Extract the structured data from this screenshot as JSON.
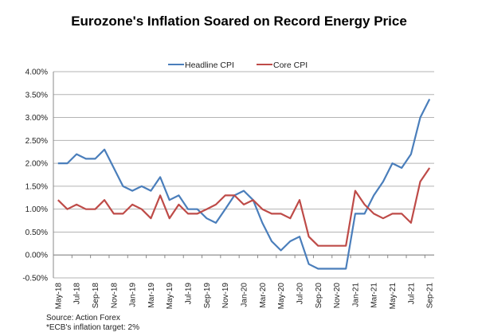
{
  "chart_data": {
    "type": "line",
    "title": "Eurozone's Inflation Soared on Record Energy Price",
    "xlabel": "",
    "ylabel": "",
    "ylim": [
      -0.5,
      4.0
    ],
    "ytick_step": 0.5,
    "ytick_labels": [
      "-0.50%",
      "0.00%",
      "0.50%",
      "1.00%",
      "1.50%",
      "2.00%",
      "2.50%",
      "3.00%",
      "3.50%",
      "4.00%"
    ],
    "grid": true,
    "legend_position": "top-center",
    "x": [
      "May-18",
      "Jun-18",
      "Jul-18",
      "Aug-18",
      "Sep-18",
      "Oct-18",
      "Nov-18",
      "Dec-18",
      "Jan-19",
      "Feb-19",
      "Mar-19",
      "Apr-19",
      "May-19",
      "Jun-19",
      "Jul-19",
      "Aug-19",
      "Sep-19",
      "Oct-19",
      "Nov-19",
      "Dec-19",
      "Jan-20",
      "Feb-20",
      "Mar-20",
      "Apr-20",
      "May-20",
      "Jun-20",
      "Jul-20",
      "Aug-20",
      "Sep-20",
      "Oct-20",
      "Nov-20",
      "Dec-20",
      "Jan-21",
      "Feb-21",
      "Mar-21",
      "Apr-21",
      "May-21",
      "Jun-21",
      "Jul-21",
      "Aug-21",
      "Sep-21"
    ],
    "xtick_labels": [
      "May-18",
      "Jul-18",
      "Sep-18",
      "Nov-18",
      "Jan-19",
      "Mar-19",
      "May-19",
      "Jul-19",
      "Sep-19",
      "Nov-19",
      "Jan-20",
      "Mar-20",
      "May-20",
      "Jul-20",
      "Sep-20",
      "Nov-20",
      "Jan-21",
      "Mar-21",
      "May-21",
      "Jul-21",
      "Sep-21"
    ],
    "series": [
      {
        "name": "Headline CPI",
        "color": "#4a7ebb",
        "values": [
          2.0,
          2.0,
          2.2,
          2.1,
          2.1,
          2.3,
          1.9,
          1.5,
          1.4,
          1.5,
          1.4,
          1.7,
          1.2,
          1.3,
          1.0,
          1.0,
          0.8,
          0.7,
          1.0,
          1.3,
          1.4,
          1.2,
          0.7,
          0.3,
          0.1,
          0.3,
          0.4,
          -0.2,
          -0.3,
          -0.3,
          -0.3,
          -0.3,
          0.9,
          0.9,
          1.3,
          1.6,
          2.0,
          1.9,
          2.2,
          3.0,
          3.4
        ]
      },
      {
        "name": "Core CPI",
        "color": "#be4b48",
        "values": [
          1.2,
          1.0,
          1.1,
          1.0,
          1.0,
          1.2,
          0.9,
          0.9,
          1.1,
          1.0,
          0.8,
          1.3,
          0.8,
          1.1,
          0.9,
          0.9,
          1.0,
          1.1,
          1.3,
          1.3,
          1.1,
          1.2,
          1.0,
          0.9,
          0.9,
          0.8,
          1.2,
          0.4,
          0.2,
          0.2,
          0.2,
          0.2,
          1.4,
          1.1,
          0.9,
          0.8,
          0.9,
          0.9,
          0.7,
          1.6,
          1.9
        ]
      }
    ]
  },
  "notes": {
    "source": "Source: Action Forex",
    "target": "*ECB's  inflation target: 2%"
  }
}
